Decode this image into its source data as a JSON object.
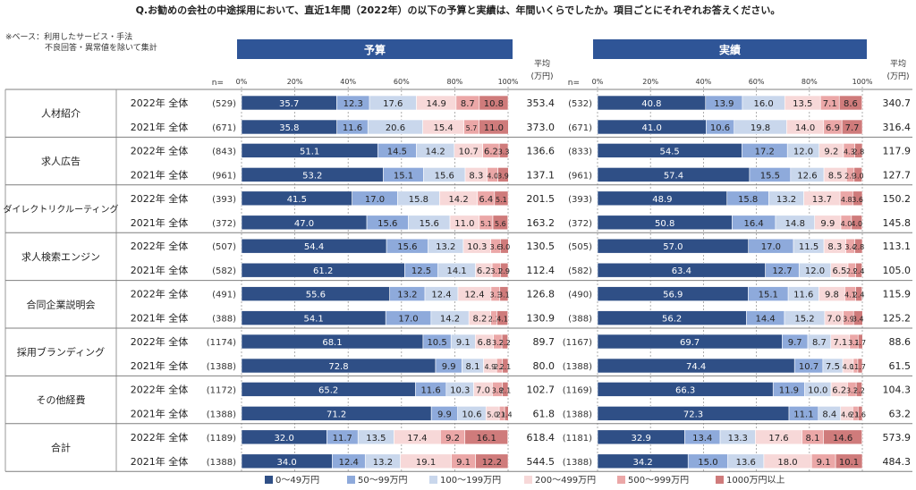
{
  "question": "Q.お勧めの会社の中途採用において、直近1年間（2022年）の以下の予算と実績は、年間いくらでしたか。項目ごとにそれぞれお答えください。",
  "base_note": [
    "※ベース：利用したサービス・手法",
    "不良回答・異常値を除いて集計"
  ],
  "n_label": "n=",
  "avg_label": [
    "平均",
    "(万円)"
  ],
  "colors": [
    "#2f4f86",
    "#8eaadb",
    "#c9d7ec",
    "#f7d8d8",
    "#eba7a7",
    "#cf7b7b"
  ],
  "chart_data": {
    "type": "stacked-bar-100",
    "panels": [
      "予算",
      "実績"
    ],
    "axis_ticks": [
      "0%",
      "20%",
      "40%",
      "60%",
      "80%",
      "100%"
    ],
    "legend": [
      "0～49万円",
      "50～99万円",
      "100～199万円",
      "200～499万円",
      "500～999万円",
      "1000万円以上"
    ],
    "categories": [
      {
        "name": "人材紹介",
        "rows": [
          {
            "year": "2022年 全体",
            "budget": {
              "n": "(529)",
              "values": [
                35.7,
                12.3,
                17.6,
                14.9,
                8.7,
                10.8
              ],
              "avg": "353.4"
            },
            "actual": {
              "n": "(532)",
              "values": [
                40.8,
                13.9,
                16.0,
                13.5,
                7.1,
                8.6
              ],
              "avg": "340.7"
            }
          },
          {
            "year": "2021年 全体",
            "budget": {
              "n": "(671)",
              "values": [
                35.8,
                11.6,
                20.6,
                15.4,
                5.7,
                11.0
              ],
              "avg": "373.0"
            },
            "actual": {
              "n": "(671)",
              "values": [
                41.0,
                10.6,
                19.8,
                14.0,
                6.9,
                7.7
              ],
              "avg": "316.4"
            }
          }
        ]
      },
      {
        "name": "求人広告",
        "rows": [
          {
            "year": "2022年 全体",
            "budget": {
              "n": "(843)",
              "values": [
                51.1,
                14.5,
                14.2,
                10.7,
                6.2,
                3.3
              ],
              "avg": "136.6"
            },
            "actual": {
              "n": "(833)",
              "values": [
                54.5,
                17.2,
                12.0,
                9.2,
                4.3,
                2.8
              ],
              "avg": "117.9"
            }
          },
          {
            "year": "2021年 全体",
            "budget": {
              "n": "(961)",
              "values": [
                53.2,
                15.1,
                15.6,
                8.3,
                4.0,
                3.9
              ],
              "avg": "137.1"
            },
            "actual": {
              "n": "(961)",
              "values": [
                57.4,
                15.5,
                12.6,
                8.5,
                2.9,
                3.0
              ],
              "avg": "127.7"
            }
          }
        ]
      },
      {
        "name": "ダイレクトリクルーティング",
        "rows": [
          {
            "year": "2022年 全体",
            "budget": {
              "n": "(393)",
              "values": [
                41.5,
                17.0,
                15.8,
                14.2,
                6.4,
                5.1
              ],
              "avg": "201.5"
            },
            "actual": {
              "n": "(393)",
              "values": [
                48.9,
                15.8,
                13.2,
                13.7,
                4.8,
                3.6
              ],
              "avg": "150.2"
            }
          },
          {
            "year": "2021年 全体",
            "budget": {
              "n": "(372)",
              "values": [
                47.0,
                15.6,
                15.6,
                11.0,
                5.1,
                5.6
              ],
              "avg": "163.2"
            },
            "actual": {
              "n": "(372)",
              "values": [
                50.8,
                16.4,
                14.8,
                9.9,
                4.0,
                4.0
              ],
              "avg": "145.8"
            }
          }
        ]
      },
      {
        "name": "求人検索エンジン",
        "rows": [
          {
            "year": "2022年 全体",
            "budget": {
              "n": "(507)",
              "values": [
                54.4,
                15.6,
                13.2,
                10.3,
                3.6,
                3.0
              ],
              "avg": "130.5"
            },
            "actual": {
              "n": "(505)",
              "values": [
                57.0,
                17.0,
                11.5,
                8.3,
                3.4,
                2.8
              ],
              "avg": "113.1"
            }
          },
          {
            "year": "2021年 全体",
            "budget": {
              "n": "(582)",
              "values": [
                61.2,
                12.5,
                14.1,
                6.2,
                3.1,
                2.9
              ],
              "avg": "112.4"
            },
            "actual": {
              "n": "(582)",
              "values": [
                63.4,
                12.7,
                12.0,
                6.5,
                2.9,
                2.4
              ],
              "avg": "105.0"
            }
          }
        ]
      },
      {
        "name": "合同企業説明会",
        "rows": [
          {
            "year": "2022年 全体",
            "budget": {
              "n": "(491)",
              "values": [
                55.6,
                13.2,
                12.4,
                12.4,
                3.3,
                3.1
              ],
              "avg": "126.8"
            },
            "actual": {
              "n": "(490)",
              "values": [
                56.9,
                15.1,
                11.6,
                9.8,
                4.1,
                2.4
              ],
              "avg": "115.9"
            }
          },
          {
            "year": "2021年 全体",
            "budget": {
              "n": "(388)",
              "values": [
                54.1,
                17.0,
                14.2,
                8.2,
                2.3,
                4.1
              ],
              "avg": "130.9"
            },
            "actual": {
              "n": "(388)",
              "values": [
                56.2,
                14.4,
                15.2,
                7.0,
                3.9,
                3.4
              ],
              "avg": "125.2"
            }
          }
        ]
      },
      {
        "name": "採用ブランディング",
        "rows": [
          {
            "year": "2022年 全体",
            "budget": {
              "n": "(1174)",
              "values": [
                68.1,
                10.5,
                9.1,
                6.8,
                3.2,
                2.2
              ],
              "avg": "89.7"
            },
            "actual": {
              "n": "(1167)",
              "values": [
                69.7,
                9.7,
                8.7,
                7.1,
                3.2,
                1.7
              ],
              "avg": "88.6"
            }
          },
          {
            "year": "2021年 全体",
            "budget": {
              "n": "(1388)",
              "values": [
                72.8,
                9.9,
                8.1,
                4.9,
                2.2,
                2.1
              ],
              "avg": "80.0"
            },
            "actual": {
              "n": "(1388)",
              "values": [
                74.4,
                10.7,
                7.5,
                4.0,
                1.7,
                1.7
              ],
              "avg": "61.5"
            }
          }
        ]
      },
      {
        "name": "その他経費",
        "rows": [
          {
            "year": "2022年 全体",
            "budget": {
              "n": "(1172)",
              "values": [
                65.2,
                11.6,
                10.3,
                7.0,
                3.8,
                2.1
              ],
              "avg": "102.7"
            },
            "actual": {
              "n": "(1169)",
              "values": [
                66.3,
                11.9,
                10.0,
                6.2,
                3.3,
                2.2
              ],
              "avg": "104.3"
            }
          },
          {
            "year": "2021年 全体",
            "budget": {
              "n": "(1388)",
              "values": [
                71.2,
                9.9,
                10.6,
                5.0,
                2.0,
                1.4
              ],
              "avg": "61.8"
            },
            "actual": {
              "n": "(1388)",
              "values": [
                72.3,
                11.1,
                8.4,
                4.6,
                2.0,
                1.6
              ],
              "avg": "63.2"
            }
          }
        ]
      },
      {
        "name": "合計",
        "rows": [
          {
            "year": "2022年 全体",
            "budget": {
              "n": "(1189)",
              "values": [
                32.0,
                11.7,
                13.5,
                17.4,
                9.2,
                16.1
              ],
              "avg": "618.4"
            },
            "actual": {
              "n": "(1181)",
              "values": [
                32.9,
                13.4,
                13.3,
                17.6,
                8.1,
                14.6
              ],
              "avg": "573.9"
            }
          },
          {
            "year": "2021年 全体",
            "budget": {
              "n": "(1388)",
              "values": [
                34.0,
                12.4,
                13.2,
                19.1,
                9.1,
                12.2
              ],
              "avg": "544.5"
            },
            "actual": {
              "n": "(1388)",
              "values": [
                34.2,
                15.0,
                13.6,
                18.0,
                9.1,
                10.1
              ],
              "avg": "484.3"
            }
          }
        ]
      }
    ]
  }
}
